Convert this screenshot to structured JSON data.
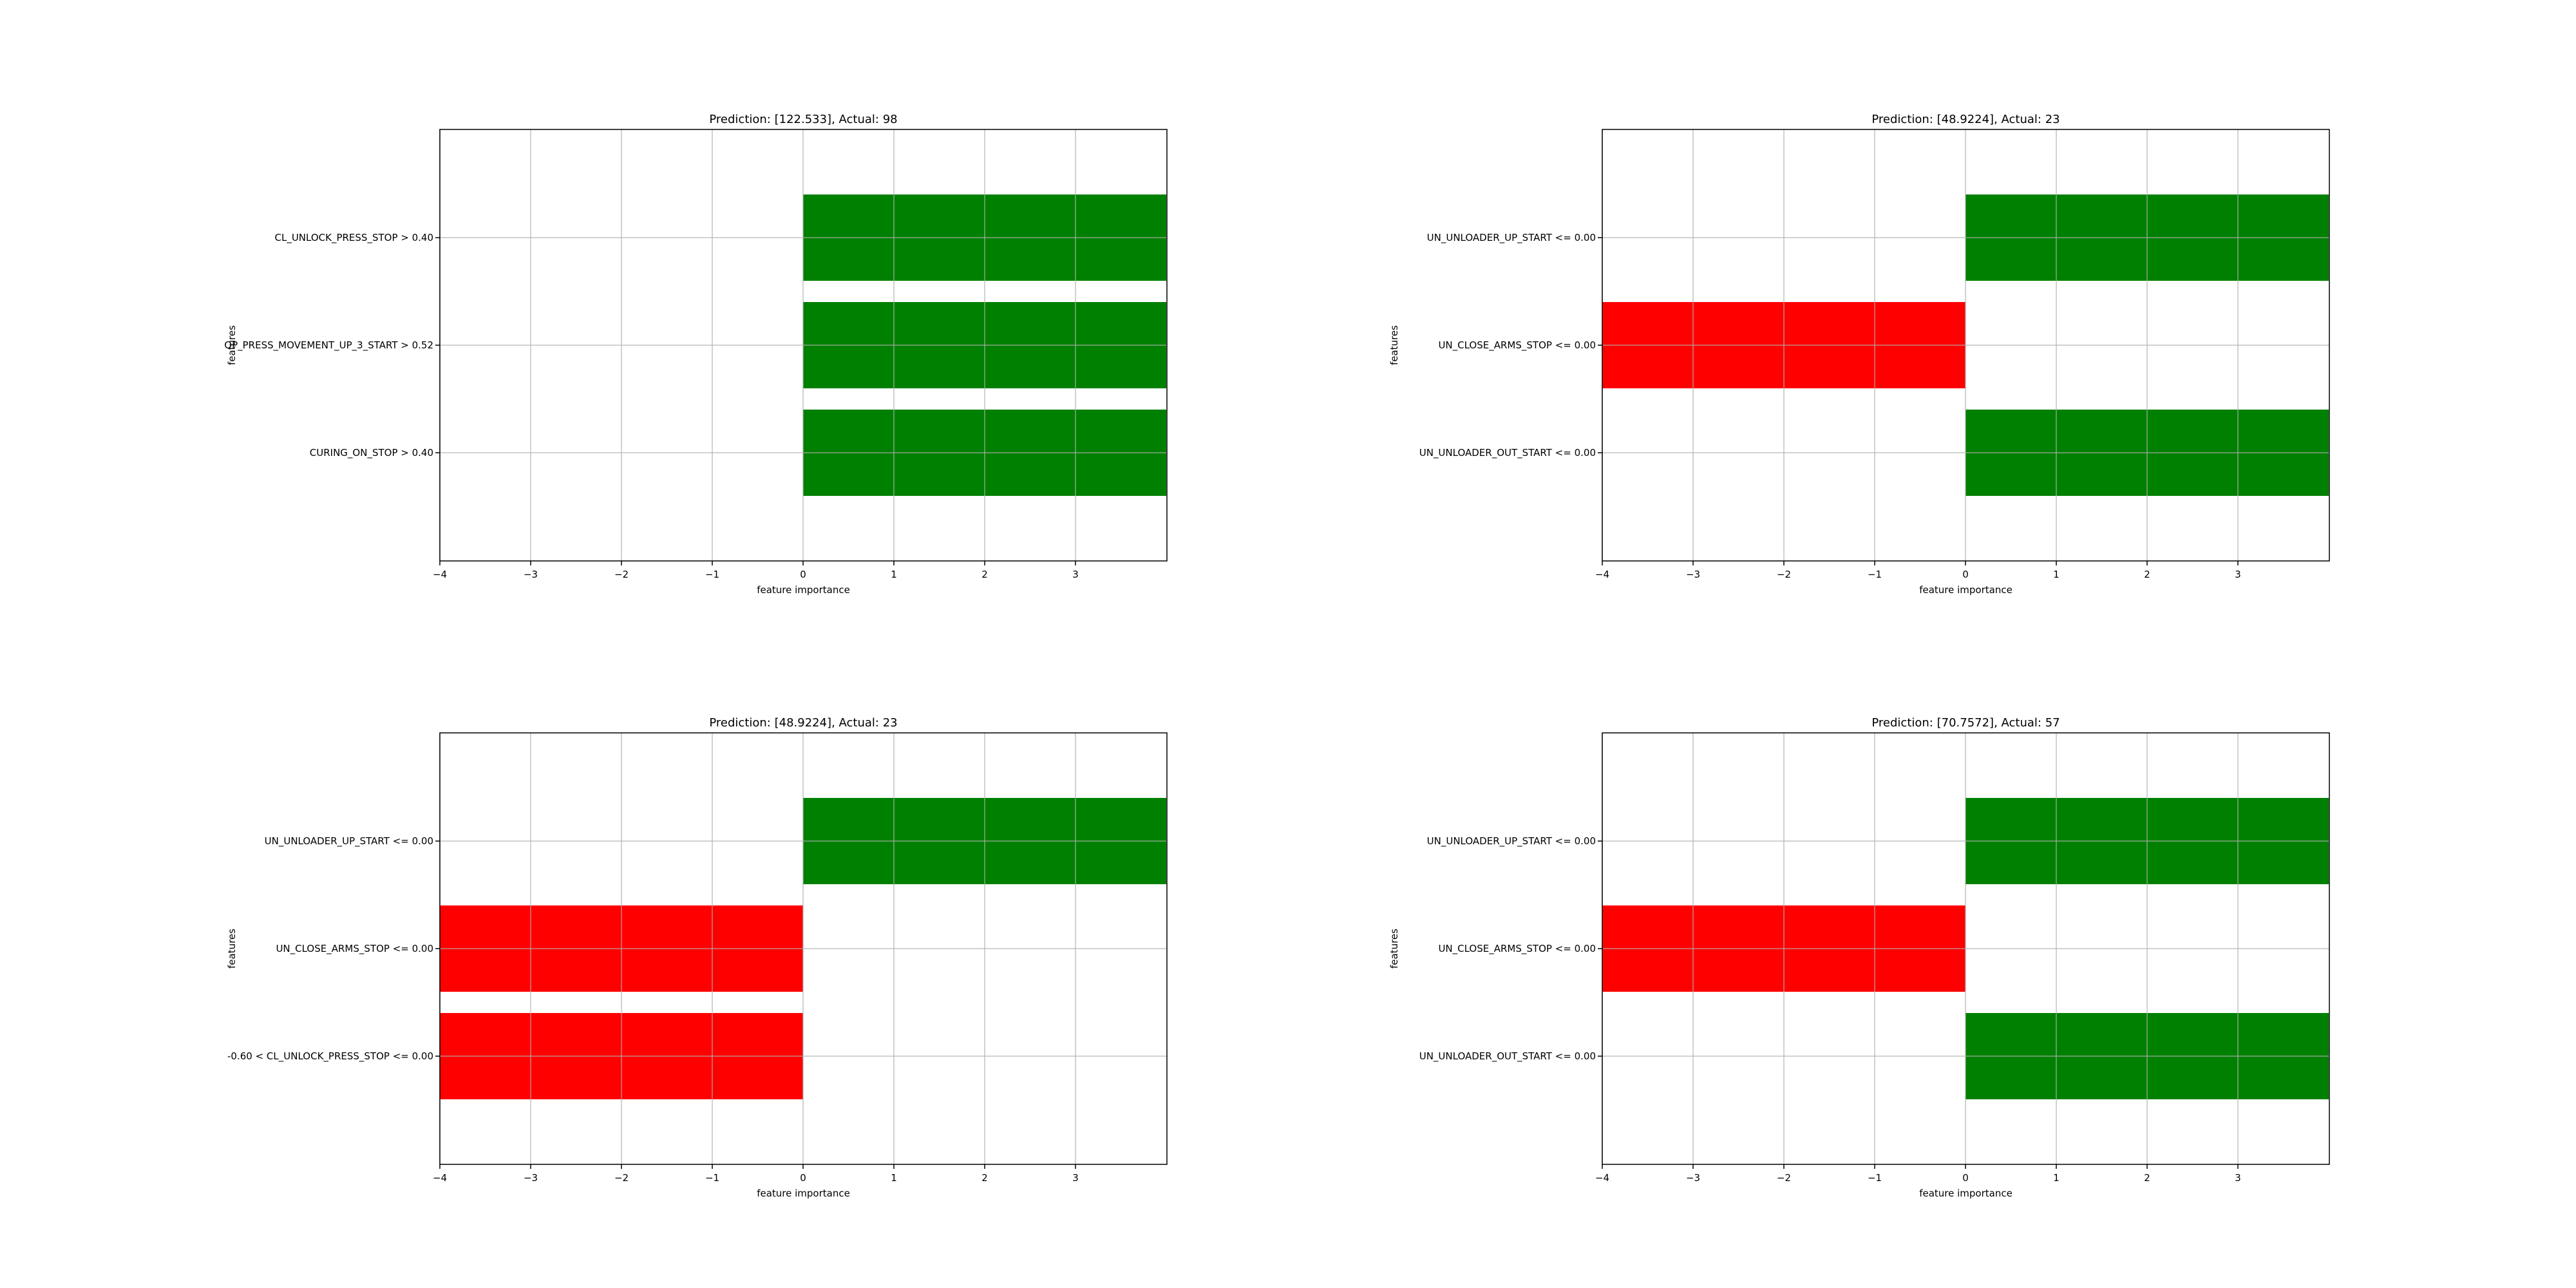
{
  "chart_data": [
    {
      "type": "bar",
      "orientation": "horizontal",
      "title": "Prediction: [122.533], Actual: 98",
      "xlabel": "feature importance",
      "ylabel": "features",
      "xlim": [
        -4,
        4
      ],
      "xticks": [
        -4,
        -3,
        -2,
        -1,
        0,
        1,
        2,
        3
      ],
      "xtick_labels": [
        "−4",
        "−3",
        "−2",
        "−1",
        "0",
        "1",
        "2",
        "3"
      ],
      "grid": true,
      "categories": [
        "CL_UNLOCK_PRESS_STOP > 0.40",
        "OP_PRESS_MOVEMENT_UP_3_START > 0.52",
        "CURING_ON_STOP > 0.40"
      ],
      "values": [
        4,
        4,
        4
      ],
      "colors": [
        "#008000",
        "#008000",
        "#008000"
      ]
    },
    {
      "type": "bar",
      "orientation": "horizontal",
      "title": "Prediction: [48.9224], Actual: 23",
      "xlabel": "feature importance",
      "ylabel": "features",
      "xlim": [
        -4,
        4
      ],
      "xticks": [
        -4,
        -3,
        -2,
        -1,
        0,
        1,
        2,
        3
      ],
      "xtick_labels": [
        "−4",
        "−3",
        "−2",
        "−1",
        "0",
        "1",
        "2",
        "3"
      ],
      "grid": true,
      "categories": [
        "UN_UNLOADER_UP_START <= 0.00",
        "UN_CLOSE_ARMS_STOP <= 0.00",
        "UN_UNLOADER_OUT_START <= 0.00"
      ],
      "values": [
        4,
        -4,
        4
      ],
      "colors": [
        "#008000",
        "#ff0000",
        "#008000"
      ]
    },
    {
      "type": "bar",
      "orientation": "horizontal",
      "title": "Prediction: [48.9224], Actual: 23",
      "xlabel": "feature importance",
      "ylabel": "features",
      "xlim": [
        -4,
        4
      ],
      "xticks": [
        -4,
        -3,
        -2,
        -1,
        0,
        1,
        2,
        3
      ],
      "xtick_labels": [
        "−4",
        "−3",
        "−2",
        "−1",
        "0",
        "1",
        "2",
        "3"
      ],
      "grid": true,
      "categories": [
        "UN_UNLOADER_UP_START <= 0.00",
        "UN_CLOSE_ARMS_STOP <= 0.00",
        "-0.60 < CL_UNLOCK_PRESS_STOP <= 0.00"
      ],
      "values": [
        4,
        -4,
        -4
      ],
      "colors": [
        "#008000",
        "#ff0000",
        "#ff0000"
      ]
    },
    {
      "type": "bar",
      "orientation": "horizontal",
      "title": "Prediction: [70.7572], Actual: 57",
      "xlabel": "feature importance",
      "ylabel": "features",
      "xlim": [
        -4,
        4
      ],
      "xticks": [
        -4,
        -3,
        -2,
        -1,
        0,
        1,
        2,
        3
      ],
      "xtick_labels": [
        "−4",
        "−3",
        "−2",
        "−1",
        "0",
        "1",
        "2",
        "3"
      ],
      "grid": true,
      "categories": [
        "UN_UNLOADER_UP_START <= 0.00",
        "UN_CLOSE_ARMS_STOP <= 0.00",
        "UN_UNLOADER_OUT_START <= 0.00"
      ],
      "values": [
        4,
        -4,
        4
      ],
      "colors": [
        "#008000",
        "#ff0000",
        "#008000"
      ]
    }
  ]
}
